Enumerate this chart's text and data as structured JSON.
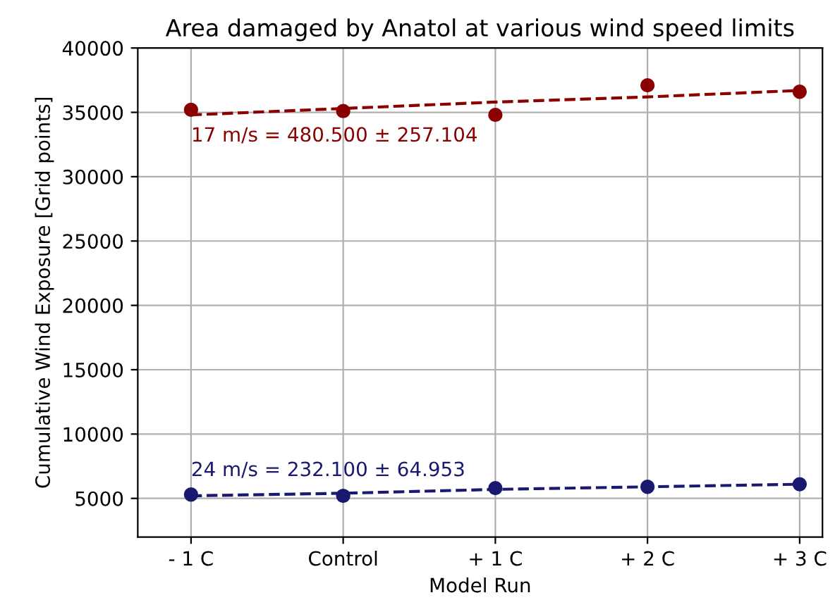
{
  "chart_data": {
    "type": "scatter",
    "title": "Area damaged by Anatol at various wind speed limits",
    "xlabel": "Model Run",
    "ylabel": "Cumulative Wind Exposure [Grid points]",
    "categories": [
      "- 1 C",
      "Control",
      "+ 1 C",
      "+ 2 C",
      "+ 3 C"
    ],
    "series": [
      {
        "color": "#8b0000",
        "marker": "circle",
        "values": [
          35200,
          35100,
          34800,
          37100,
          36600
        ]
      },
      {
        "type": "line",
        "color": "#8b0000",
        "line_style": "dashed",
        "marker": "none",
        "values": [
          34800,
          35300,
          35800,
          36200,
          36700
        ]
      },
      {
        "color": "#191970",
        "marker": "circle",
        "values": [
          5300,
          5200,
          5800,
          5900,
          6100
        ]
      },
      {
        "type": "line",
        "color": "#191970",
        "line_style": "dashed",
        "marker": "none",
        "values": [
          5200,
          5400,
          5700,
          5900,
          6100
        ]
      }
    ],
    "annotations": [
      "17 m/s = 480.500 ± 257.104",
      "24 m/s = 232.100 ± 64.953"
    ],
    "ylim": [
      2000,
      40000
    ],
    "yticks": [
      5000,
      10000,
      15000,
      20000,
      25000,
      30000,
      35000,
      40000
    ],
    "grid": true
  }
}
